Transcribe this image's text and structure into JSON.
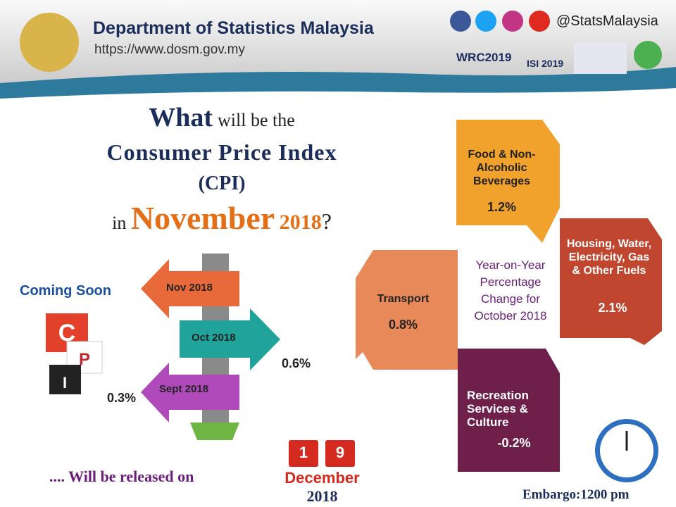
{
  "header": {
    "title": "Department of Statistics Malaysia",
    "url": "https://www.dosm.gov.my",
    "social": "@StatsMalaysia",
    "logos": [
      "WRC2019",
      "ISI 2019"
    ]
  },
  "headline": {
    "what": "What",
    "will_be": "will be the",
    "cpi_name": "Consumer Price Index",
    "cpi_abbr": "(CPI)",
    "in": "in",
    "month": "November",
    "year": "2018",
    "question": "?"
  },
  "signpost": {
    "coming_soon": "Coming Soon",
    "arrows": [
      {
        "label": "Nov 2018"
      },
      {
        "label": "Oct 2018",
        "value": "0.6%"
      },
      {
        "label": "Sept 2018",
        "value": "0.3%"
      }
    ]
  },
  "release": {
    "text": ".... Will be released on",
    "day": [
      "1",
      "9"
    ],
    "month": "December",
    "year": "2018"
  },
  "embargo": "Embargo:1200 pm",
  "groups": {
    "center": "Year-on-Year Percentage Change for October 2018",
    "items": [
      {
        "name": "Food & Non-Alcoholic Beverages",
        "value": "1.2%"
      },
      {
        "name": "Housing, Water, Electricity, Gas & Other Fuels",
        "value": "2.1%"
      },
      {
        "name": "Transport",
        "value": "0.8%"
      },
      {
        "name": "Recreation Services & Culture",
        "value": "-0.2%"
      }
    ]
  }
}
